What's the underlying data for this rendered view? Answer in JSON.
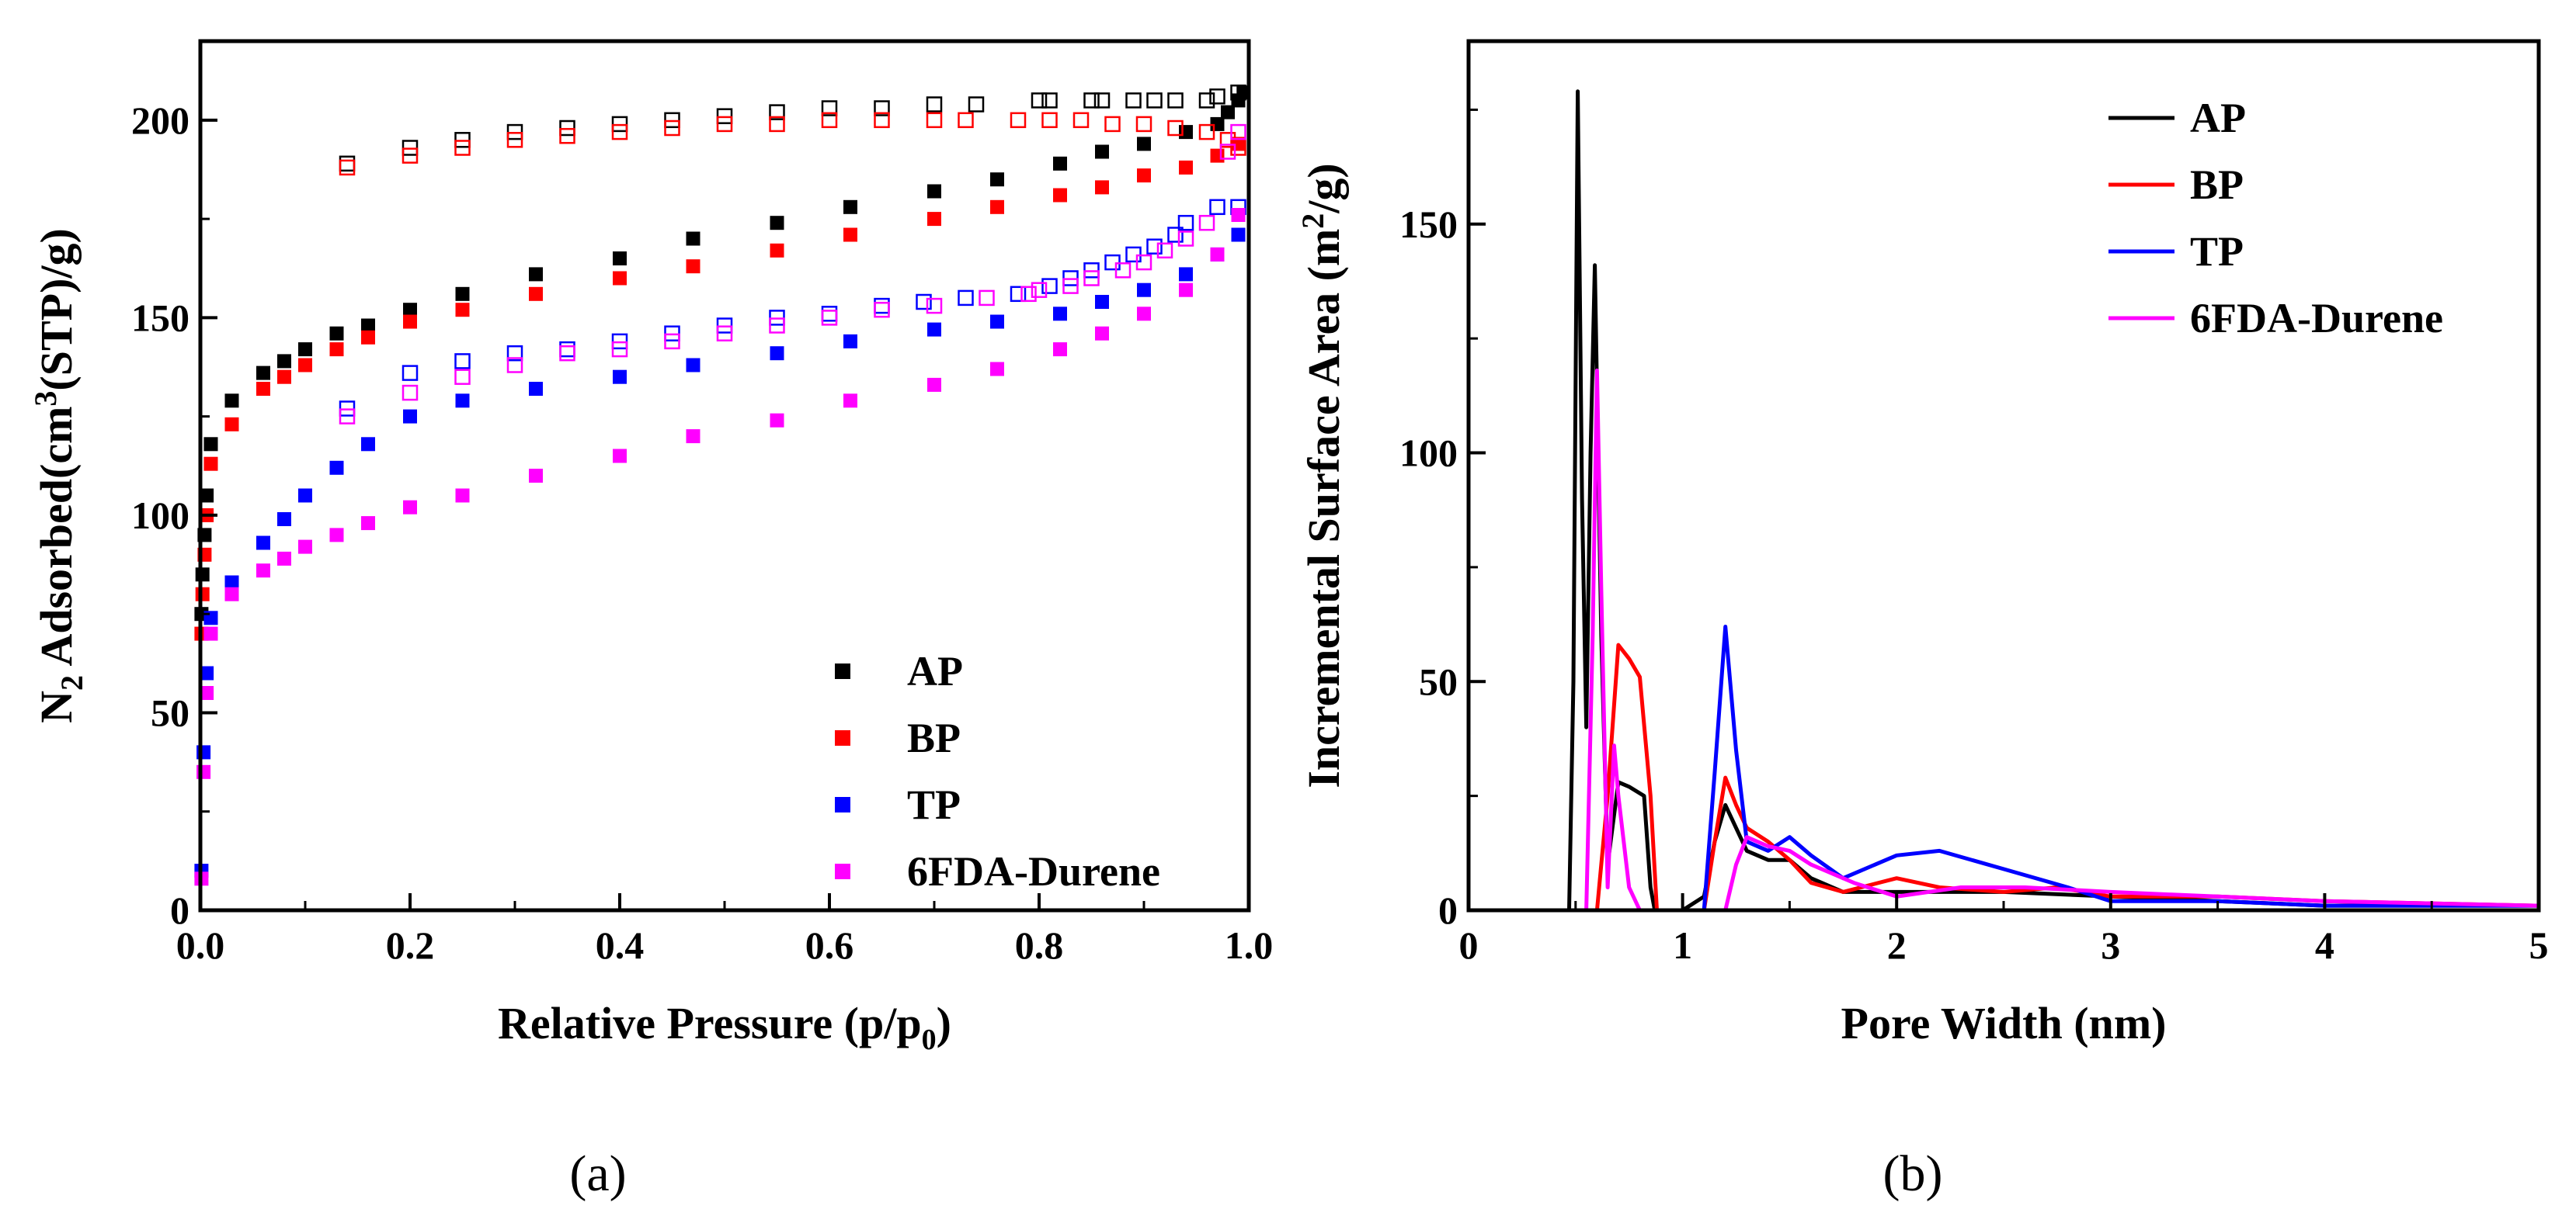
{
  "figure": {
    "panel_a_label": "(a)",
    "panel_b_label": "(b)"
  },
  "chart_data": [
    {
      "type": "scatter",
      "panel": "a",
      "title": "",
      "xlabel": "Relative Pressure (p/p0)",
      "xlabel_main": "Relative Pressure (p/p",
      "xlabel_sub": "0",
      "xlabel_tail": ")",
      "ylabel": "N2 Adsorbed(cm3(STP)/g)",
      "ylabel_n": "N",
      "ylabel_sub": "2",
      "ylabel_mid": " Adsorbed(cm",
      "ylabel_sup": "3",
      "ylabel_tail": "(STP)/g)",
      "xlim": [
        0,
        1.0
      ],
      "ylim": [
        0,
        220
      ],
      "xticks": [
        0.0,
        0.2,
        0.4,
        0.6,
        0.8,
        1.0
      ],
      "xtick_labels": [
        "0.0",
        "0.2",
        "0.4",
        "0.6",
        "0.8",
        "1.0"
      ],
      "yticks": [
        0,
        50,
        100,
        150,
        200
      ],
      "ytick_labels": [
        "0",
        "50",
        "100",
        "150",
        "200"
      ],
      "legend_position": "bottom-right",
      "legend_labels": [
        "AP",
        "BP",
        "TP",
        "6FDA-Durene"
      ],
      "notes": "filled squares = adsorption, open squares = desorption",
      "series": [
        {
          "name": "AP",
          "color": "#000000",
          "adsorption": {
            "x": [
              0.001,
              0.002,
              0.004,
              0.006,
              0.01,
              0.03,
              0.06,
              0.08,
              0.1,
              0.13,
              0.16,
              0.2,
              0.25,
              0.32,
              0.4,
              0.47,
              0.55,
              0.62,
              0.7,
              0.76,
              0.82,
              0.86,
              0.9,
              0.94,
              0.97,
              0.98,
              0.99,
              0.995
            ],
            "y": [
              75,
              85,
              95,
              105,
              118,
              129,
              136,
              139,
              142,
              146,
              148,
              152,
              156,
              161,
              165,
              170,
              174,
              178,
              182,
              185,
              189,
              192,
              194,
              197,
              199,
              202,
              205,
              207
            ]
          },
          "desorption": {
            "x": [
              0.14,
              0.2,
              0.25,
              0.3,
              0.35,
              0.4,
              0.45,
              0.5,
              0.55,
              0.6,
              0.65,
              0.7,
              0.74,
              0.8,
              0.81,
              0.85,
              0.86,
              0.89,
              0.91,
              0.93,
              0.96,
              0.97,
              0.99
            ],
            "y": [
              189,
              193,
              195,
              197,
              198,
              199,
              200,
              201,
              202,
              203,
              203,
              204,
              204,
              205,
              205,
              205,
              205,
              205,
              205,
              205,
              205,
              206,
              207
            ]
          }
        },
        {
          "name": "BP",
          "color": "#ff0000",
          "adsorption": {
            "x": [
              0.001,
              0.002,
              0.004,
              0.006,
              0.01,
              0.03,
              0.06,
              0.08,
              0.1,
              0.13,
              0.16,
              0.2,
              0.25,
              0.32,
              0.4,
              0.47,
              0.55,
              0.62,
              0.7,
              0.76,
              0.82,
              0.86,
              0.9,
              0.94,
              0.97,
              0.99
            ],
            "y": [
              70,
              80,
              90,
              100,
              113,
              123,
              132,
              135,
              138,
              142,
              145,
              149,
              152,
              156,
              160,
              163,
              167,
              171,
              175,
              178,
              181,
              183,
              186,
              188,
              191,
              194
            ]
          },
          "desorption": {
            "x": [
              0.14,
              0.2,
              0.25,
              0.3,
              0.35,
              0.4,
              0.45,
              0.5,
              0.55,
              0.6,
              0.65,
              0.7,
              0.73,
              0.78,
              0.81,
              0.84,
              0.87,
              0.9,
              0.93,
              0.96,
              0.98,
              0.99
            ],
            "y": [
              188,
              191,
              193,
              195,
              196,
              197,
              198,
              199,
              199,
              200,
              200,
              200,
              200,
              200,
              200,
              200,
              199,
              199,
              198,
              197,
              195,
              193
            ]
          }
        },
        {
          "name": "TP",
          "color": "#0000ff",
          "adsorption": {
            "x": [
              0.001,
              0.003,
              0.006,
              0.01,
              0.03,
              0.06,
              0.08,
              0.1,
              0.13,
              0.16,
              0.2,
              0.25,
              0.32,
              0.4,
              0.47,
              0.55,
              0.62,
              0.7,
              0.76,
              0.82,
              0.86,
              0.9,
              0.94,
              0.97,
              0.99
            ],
            "y": [
              10,
              40,
              60,
              74,
              83,
              93,
              99,
              105,
              112,
              118,
              125,
              129,
              132,
              135,
              138,
              141,
              144,
              147,
              149,
              151,
              154,
              157,
              161,
              166,
              171
            ]
          },
          "desorption": {
            "x": [
              0.14,
              0.2,
              0.25,
              0.3,
              0.35,
              0.4,
              0.45,
              0.5,
              0.55,
              0.6,
              0.65,
              0.69,
              0.73,
              0.78,
              0.81,
              0.83,
              0.85,
              0.87,
              0.89,
              0.91,
              0.93,
              0.94,
              0.97,
              0.99
            ],
            "y": [
              127,
              136,
              139,
              141,
              142,
              144,
              146,
              148,
              150,
              151,
              153,
              154,
              155,
              156,
              158,
              160,
              162,
              164,
              166,
              168,
              171,
              174,
              178,
              178
            ]
          }
        },
        {
          "name": "6FDA-Durene",
          "color": "#ff00ff",
          "adsorption": {
            "x": [
              0.001,
              0.003,
              0.006,
              0.01,
              0.03,
              0.06,
              0.08,
              0.1,
              0.13,
              0.16,
              0.2,
              0.25,
              0.32,
              0.4,
              0.47,
              0.55,
              0.62,
              0.7,
              0.76,
              0.82,
              0.86,
              0.9,
              0.94,
              0.97,
              0.99
            ],
            "y": [
              8,
              35,
              55,
              70,
              80,
              86,
              89,
              92,
              95,
              98,
              102,
              105,
              110,
              115,
              120,
              124,
              129,
              133,
              137,
              142,
              146,
              151,
              157,
              166,
              176
            ]
          },
          "desorption": {
            "x": [
              0.14,
              0.2,
              0.25,
              0.3,
              0.35,
              0.4,
              0.45,
              0.5,
              0.55,
              0.6,
              0.65,
              0.7,
              0.75,
              0.79,
              0.8,
              0.83,
              0.85,
              0.88,
              0.9,
              0.92,
              0.94,
              0.96,
              0.98,
              0.99
            ],
            "y": [
              125,
              131,
              135,
              138,
              141,
              142,
              144,
              146,
              148,
              150,
              152,
              153,
              155,
              156,
              157,
              158,
              160,
              162,
              164,
              167,
              170,
              174,
              192,
              197
            ]
          }
        }
      ]
    },
    {
      "type": "line",
      "panel": "b",
      "title": "",
      "xlabel": "Pore Width (nm)",
      "ylabel": "Incremental Surface Area (m2/g)",
      "ylabel_main": "Incremental Surface Area (m",
      "ylabel_sup": "2",
      "ylabel_tail": "/g)",
      "xlim": [
        0,
        5
      ],
      "ylim": [
        0,
        190
      ],
      "xticks": [
        0,
        1,
        2,
        3,
        4,
        5
      ],
      "xtick_labels": [
        "0",
        "1",
        "2",
        "3",
        "4",
        "5"
      ],
      "yticks": [
        0,
        50,
        100,
        150
      ],
      "ytick_labels": [
        "0",
        "50",
        "100",
        "150"
      ],
      "legend_position": "top-right",
      "legend_labels": [
        "AP",
        "BP",
        "TP",
        "6FDA-Durene"
      ],
      "series": [
        {
          "name": "AP",
          "color": "#000000",
          "x": [
            0.47,
            0.49,
            0.51,
            0.53,
            0.55,
            0.57,
            0.59,
            0.62,
            0.65,
            0.7,
            0.75,
            0.82,
            0.85,
            0.87,
            1.0,
            1.1,
            1.15,
            1.2,
            1.25,
            1.3,
            1.4,
            1.5,
            1.6,
            1.75,
            2.0,
            2.5,
            3.0,
            3.5,
            4.0,
            4.5,
            5.0
          ],
          "y": [
            0,
            50,
            179,
            90,
            40,
            100,
            141,
            60,
            10,
            28,
            27,
            25,
            5,
            0,
            0,
            3,
            15,
            23,
            18,
            13,
            11,
            11,
            7,
            4,
            4,
            4,
            3,
            2,
            1,
            1,
            1
          ]
        },
        {
          "name": "BP",
          "color": "#ff0000",
          "x": [
            0.5,
            0.6,
            0.65,
            0.7,
            0.75,
            0.8,
            0.85,
            0.88,
            1.1,
            1.15,
            1.2,
            1.25,
            1.3,
            1.4,
            1.5,
            1.6,
            1.75,
            2.0,
            2.2,
            2.5,
            2.75,
            3.0,
            3.5,
            4.0,
            5.0
          ],
          "y": [
            0,
            0,
            25,
            58,
            55,
            51,
            25,
            0,
            0,
            15,
            29,
            23,
            18,
            15,
            11,
            6,
            4,
            7,
            5,
            4,
            5,
            3,
            3,
            2,
            1
          ]
        },
        {
          "name": "TP",
          "color": "#0000ff",
          "x": [
            0.5,
            0.6,
            0.65,
            0.7,
            0.75,
            1.1,
            1.15,
            1.2,
            1.25,
            1.3,
            1.4,
            1.5,
            1.6,
            1.75,
            2.0,
            2.2,
            2.5,
            2.8,
            3.0,
            3.5,
            4.0,
            5.0
          ],
          "y": [
            0,
            0,
            0,
            0,
            0,
            0,
            30,
            62,
            35,
            15,
            13,
            16,
            12,
            7,
            12,
            13,
            9,
            5,
            2,
            2,
            1,
            1
          ]
        },
        {
          "name": "6FDA-Durene",
          "color": "#ff00ff",
          "x": [
            0.55,
            0.58,
            0.6,
            0.62,
            0.65,
            0.68,
            0.7,
            0.75,
            0.8,
            1.1,
            1.15,
            1.2,
            1.25,
            1.3,
            1.4,
            1.5,
            1.6,
            1.8,
            2.0,
            2.3,
            2.6,
            3.0,
            3.5,
            4.0,
            5.0
          ],
          "y": [
            0,
            60,
            118,
            70,
            5,
            36,
            25,
            5,
            0,
            0,
            0,
            0,
            10,
            16,
            14,
            13,
            10,
            6,
            3,
            5,
            5,
            4,
            3,
            2,
            1
          ]
        }
      ]
    }
  ]
}
